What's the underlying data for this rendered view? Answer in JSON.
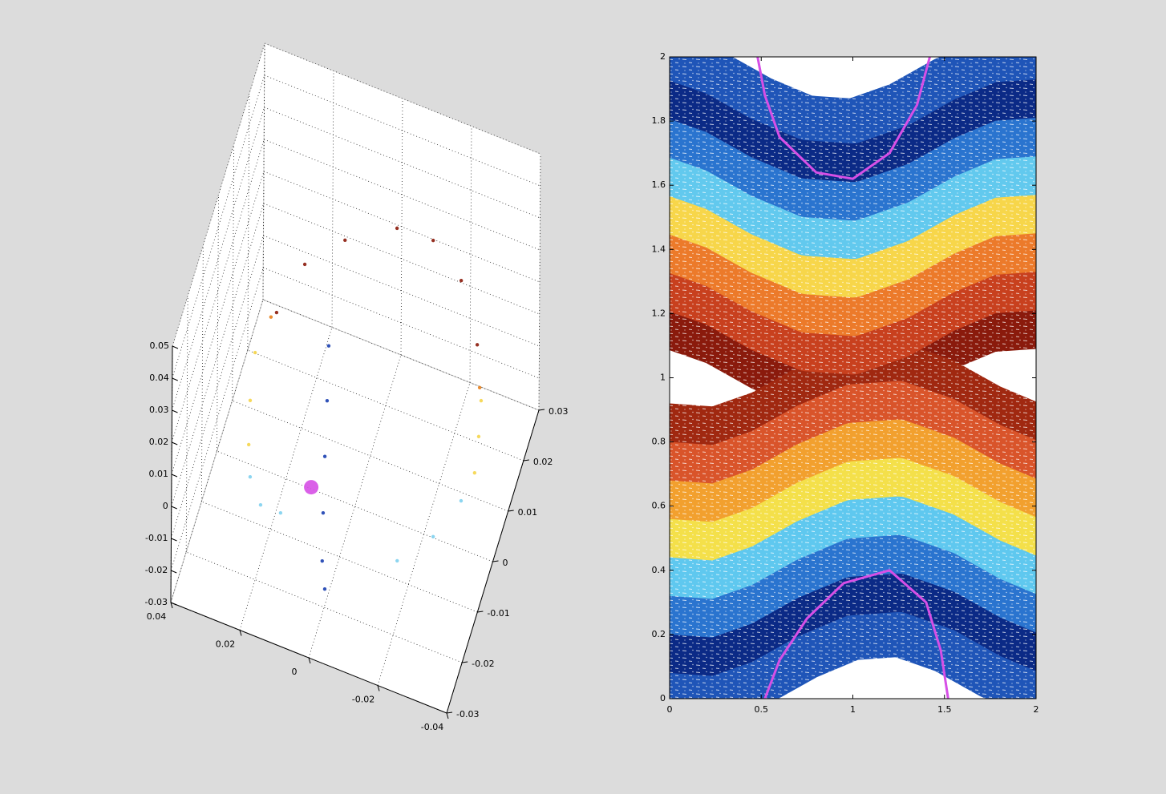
{
  "chart_data": [
    {
      "type": "scatter3d",
      "xlim": [
        -0.04,
        0.04
      ],
      "ylim": [
        -0.03,
        0.03
      ],
      "zlim": [
        -0.03,
        0.05
      ],
      "xticks": [
        -0.04,
        -0.02,
        0,
        0.02,
        0.04
      ],
      "yticks": [
        -0.03,
        -0.02,
        -0.01,
        0,
        0.01,
        0.02,
        0.03
      ],
      "zticks": [
        -0.03,
        -0.02,
        -0.01,
        0,
        0.01,
        0.02,
        0.03,
        0.04,
        0.05
      ],
      "grid": true,
      "series": [
        {
          "color": "#8b1a0a",
          "markersize": 2.2,
          "x": [
            0.0256,
            0.0221,
            0.0136,
            0.0011,
            -0.0092,
            -0.0196,
            -0.0288
          ],
          "y": [
            0.006,
            0.0165,
            0.0236,
            0.0294,
            0.0298,
            0.0247,
            0.0145
          ],
          "z": [
            0.01,
            0.01,
            0.01,
            0.01,
            0.01,
            0.01,
            0.01
          ]
        },
        {
          "color": "#e8801a",
          "markersize": 2.2,
          "x": [
            0.0267,
            -0.0328
          ],
          "y": [
            0.0048,
            0.0071
          ],
          "z": [
            0.01,
            0.01
          ]
        },
        {
          "color": "#f5d54a",
          "markersize": 2.2,
          "x": [
            0.028,
            0.0255,
            0.0224,
            -0.0342,
            -0.0364,
            -0.0382
          ],
          "y": [
            -0.0026,
            -0.0114,
            -0.0193,
            0.0049,
            -0.0016,
            -0.0083
          ],
          "z": [
            0.01,
            0.01,
            0.01,
            0.01,
            0.01,
            0.01
          ]
        },
        {
          "color": "#7fd0ee",
          "markersize": 2.2,
          "x": [
            0.0195,
            0.0146,
            0.0088,
            -0.0369,
            -0.0325,
            -0.0251
          ],
          "y": [
            -0.0249,
            -0.0291,
            -0.0291,
            -0.0142,
            -0.0225,
            -0.0293
          ],
          "z": [
            0.01,
            0.01,
            0.01,
            0.01,
            0.01,
            0.01
          ]
        },
        {
          "color": "#1a3fb0",
          "markersize": 2.2,
          "x": [
            0.0095,
            0.0056,
            0.0018,
            -0.0022,
            -0.0008,
            -0.0012
          ],
          "y": [
            0.0038,
            -0.006,
            -0.016,
            -0.0261,
            -0.0233,
            -0.0224
          ],
          "z": [
            0.01,
            0.01,
            0.01,
            0.01,
            -0.01,
            -0.02
          ]
        },
        {
          "color": "#d64fe6",
          "markersize": 9,
          "x": [
            0.0029
          ],
          "y": [
            -0.0224
          ],
          "z": [
            0.01
          ]
        }
      ]
    },
    {
      "type": "line",
      "xlim": [
        0,
        2
      ],
      "ylim": [
        0,
        2
      ],
      "xticks": [
        0,
        0.5,
        1,
        1.5,
        2
      ],
      "yticks": [
        0,
        0.2,
        0.4,
        0.6,
        0.8,
        1,
        1.2,
        1.4,
        1.6,
        1.8,
        2
      ],
      "x": [
        0,
        0.25,
        0.5,
        0.75,
        1,
        1.25,
        1.5,
        1.75,
        2
      ],
      "series": [
        {
          "color": "#8a1a0c",
          "linewidth": 56,
          "values": [
            1.16,
            1.11,
            1.03,
            0.97,
            0.96,
            1.01,
            1.09,
            1.15,
            1.16
          ]
        },
        {
          "color": "#a02810",
          "linewidth": 56,
          "values": [
            0.85,
            0.84,
            0.89,
            0.97,
            1.03,
            1.04,
            0.99,
            0.91,
            0.85
          ]
        },
        {
          "color": "#c8401e",
          "linewidth": 56,
          "values": [
            1.28,
            1.23,
            1.15,
            1.09,
            1.08,
            1.13,
            1.21,
            1.27,
            1.28
          ]
        },
        {
          "color": "#d9542a",
          "linewidth": 56,
          "values": [
            0.73,
            0.72,
            0.77,
            0.85,
            0.91,
            0.92,
            0.87,
            0.79,
            0.73
          ]
        },
        {
          "color": "#ec7a2a",
          "linewidth": 56,
          "values": [
            1.4,
            1.35,
            1.27,
            1.21,
            1.2,
            1.25,
            1.33,
            1.39,
            1.4
          ]
        },
        {
          "color": "#f2a02e",
          "linewidth": 56,
          "values": [
            0.61,
            0.6,
            0.65,
            0.73,
            0.79,
            0.8,
            0.75,
            0.67,
            0.61
          ]
        },
        {
          "color": "#f7d64a",
          "linewidth": 56,
          "values": [
            1.52,
            1.47,
            1.39,
            1.33,
            1.32,
            1.37,
            1.45,
            1.51,
            1.52
          ]
        },
        {
          "color": "#f4e04a",
          "linewidth": 56,
          "values": [
            0.49,
            0.48,
            0.53,
            0.61,
            0.67,
            0.68,
            0.63,
            0.55,
            0.49
          ]
        },
        {
          "color": "#62c9ee",
          "linewidth": 56,
          "values": [
            1.64,
            1.59,
            1.51,
            1.45,
            1.44,
            1.49,
            1.57,
            1.63,
            1.64
          ]
        },
        {
          "color": "#5fc8ef",
          "linewidth": 56,
          "values": [
            0.37,
            0.36,
            0.41,
            0.49,
            0.55,
            0.56,
            0.51,
            0.43,
            0.37
          ]
        },
        {
          "color": "#2a74cf",
          "linewidth": 56,
          "values": [
            1.76,
            1.71,
            1.63,
            1.57,
            1.56,
            1.61,
            1.69,
            1.75,
            1.76
          ]
        },
        {
          "color": "#2a74cf",
          "linewidth": 56,
          "values": [
            0.25,
            0.24,
            0.29,
            0.37,
            0.43,
            0.44,
            0.39,
            0.31,
            0.25
          ]
        },
        {
          "color": "#0b2a86",
          "linewidth": 56,
          "values": [
            1.88,
            1.83,
            1.75,
            1.69,
            1.68,
            1.73,
            1.81,
            1.87,
            1.88
          ]
        },
        {
          "color": "#0b2a86",
          "linewidth": 56,
          "values": [
            0.13,
            0.12,
            0.17,
            0.25,
            0.31,
            0.32,
            0.27,
            0.19,
            0.13
          ]
        },
        {
          "color": "#1f55b8",
          "linewidth": 56,
          "values": [
            2,
            1.95,
            1.87,
            1.81,
            1.8,
            1.85,
            1.93,
            1.99,
            2
          ]
        },
        {
          "color": "#1f55b8",
          "linewidth": 56,
          "values": [
            0.01,
            0,
            0.05,
            0.13,
            0.19,
            0.2,
            0.15,
            0.07,
            0.01
          ]
        },
        {
          "color": "#d64fe6",
          "linewidth": 3,
          "x": [
            0.52,
            0.6,
            0.75,
            0.95,
            1.2,
            1.4,
            1.48,
            1.52
          ],
          "values": [
            0,
            0.12,
            0.25,
            0.36,
            0.4,
            0.3,
            0.15,
            0
          ]
        },
        {
          "color": "#d64fe6",
          "linewidth": 3,
          "x": [
            0.48,
            0.52,
            0.6,
            0.8,
            1.0,
            1.2,
            1.35,
            1.42
          ],
          "values": [
            2,
            1.88,
            1.75,
            1.64,
            1.62,
            1.7,
            1.85,
            2
          ]
        }
      ]
    }
  ]
}
